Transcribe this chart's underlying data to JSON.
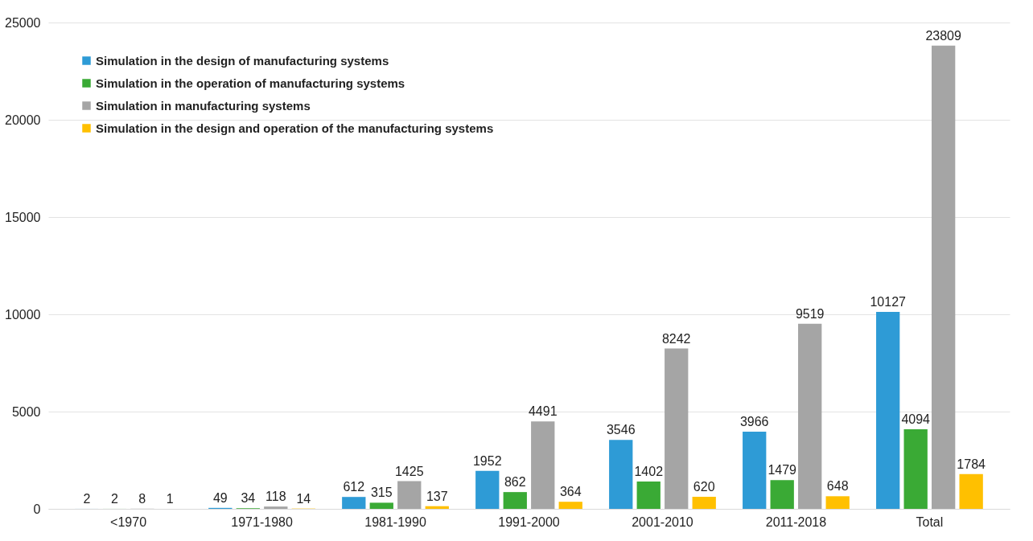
{
  "chart_data": {
    "type": "bar",
    "categories": [
      "<1970",
      "1971-1980",
      "1981-1990",
      "1991-2000",
      "2001-2010",
      "2011-2018",
      "Total"
    ],
    "series": [
      {
        "name": "Simulation in the design of manufacturing systems",
        "color": "#2e9bd6",
        "values": [
          2,
          49,
          612,
          1952,
          3546,
          3966,
          10127
        ]
      },
      {
        "name": "Simulation in the operation of manufacturing systems",
        "color": "#3aaa35",
        "values": [
          2,
          34,
          315,
          862,
          1402,
          1479,
          4094
        ]
      },
      {
        "name": "Simulation in manufacturing systems",
        "color": "#a5a5a5",
        "values": [
          8,
          118,
          1425,
          4491,
          8242,
          9519,
          23809
        ]
      },
      {
        "name": "Simulation in the design and operation of the manufacturing systems",
        "color": "#ffc000",
        "values": [
          1,
          14,
          137,
          364,
          620,
          648,
          1784
        ]
      }
    ],
    "ylim": [
      0,
      25000
    ],
    "yticks": [
      0,
      5000,
      10000,
      15000,
      20000,
      25000
    ],
    "grid": "y",
    "legend": "top left",
    "data_labels": true
  }
}
